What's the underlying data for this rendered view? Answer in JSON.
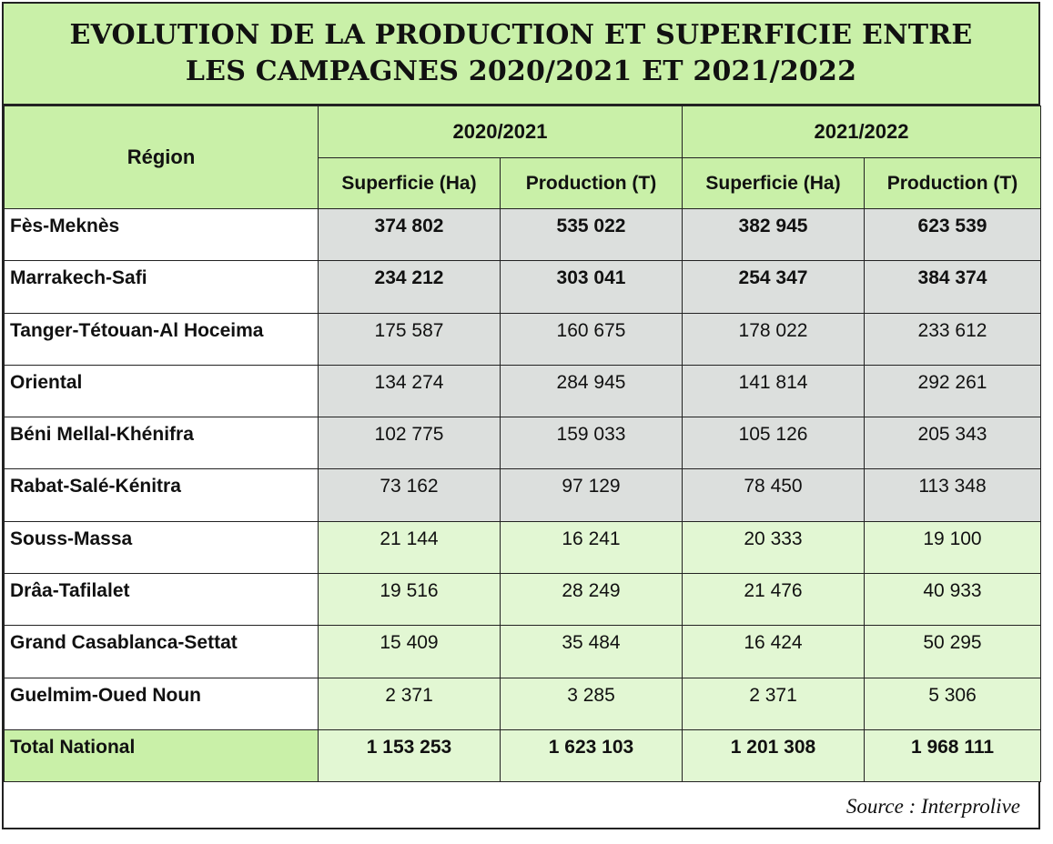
{
  "title": {
    "line1": "EVOLUTION DE LA PRODUCTION ET SUPERFICIE ENTRE",
    "line2": "LES CAMPAGNES 2020/2021 ET 2021/2022"
  },
  "header": {
    "region": "Région",
    "year1": "2020/2021",
    "year2": "2021/2022",
    "sup1": "Superficie (Ha)",
    "prod1": "Production (T)",
    "sup2": "Superficie (Ha)",
    "prod2": "Production (T)"
  },
  "rows": [
    {
      "region": "Fès-Meknès",
      "s1": "374 802",
      "p1": "535 022",
      "s2": "382 945",
      "p2": "623 539"
    },
    {
      "region": "Marrakech-Safi",
      "s1": "234 212",
      "p1": "303 041",
      "s2": "254 347",
      "p2": "384 374"
    },
    {
      "region": "Tanger-Tétouan-Al Hoceima",
      "s1": "175 587",
      "p1": "160 675",
      "s2": "178 022",
      "p2": "233 612"
    },
    {
      "region": "Oriental",
      "s1": "134 274",
      "p1": "284 945",
      "s2": "141 814",
      "p2": "292 261"
    },
    {
      "region": "Béni Mellal-Khénifra",
      "s1": "102 775",
      "p1": "159 033",
      "s2": "105 126",
      "p2": "205 343"
    },
    {
      "region": "Rabat-Salé-Kénitra",
      "s1": "73 162",
      "p1": "97 129",
      "s2": "78 450",
      "p2": "113 348"
    },
    {
      "region": "Souss-Massa",
      "s1": "21 144",
      "p1": "16 241",
      "s2": "20 333",
      "p2": "19 100"
    },
    {
      "region": "Drâa-Tafilalet",
      "s1": "19 516",
      "p1": "28 249",
      "s2": "21 476",
      "p2": "40 933"
    },
    {
      "region": "Grand Casablanca-Settat",
      "s1": "15 409",
      "p1": "35 484",
      "s2": "16 424",
      "p2": "50 295"
    },
    {
      "region": "Guelmim-Oued Noun",
      "s1": "2 371",
      "p1": "3 285",
      "s2": "2 371",
      "p2": "5 306"
    }
  ],
  "total": {
    "region": "Total National",
    "s1": "1 153 253",
    "p1": "1 623 103",
    "s2": "1 201 308",
    "p2": "1 968 111"
  },
  "source": "Source : Interprolive",
  "colors": {
    "header_green": "#c9f0a8",
    "light_green": "#e2f7d3",
    "grey": "#dcdfdd"
  }
}
